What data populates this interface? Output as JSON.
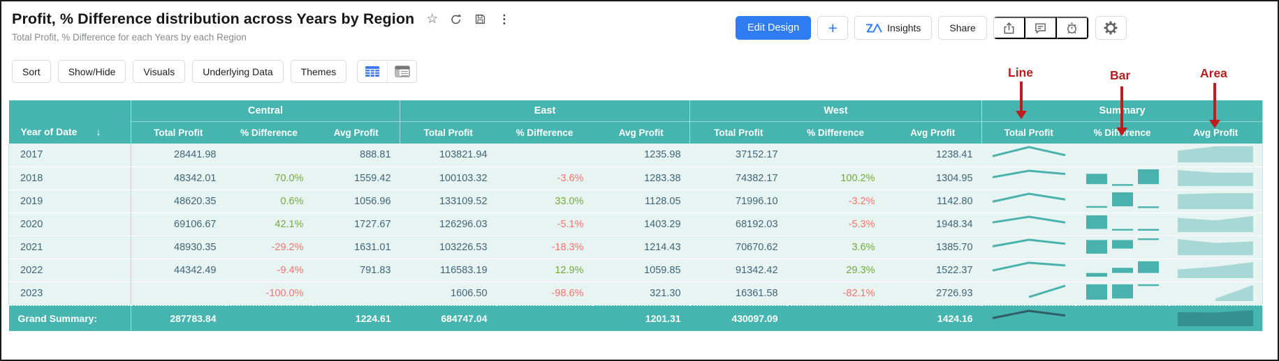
{
  "header": {
    "title": "Profit, % Difference distribution across Years by Region",
    "subtitle": "Total Profit, % Difference for each Years by each Region",
    "title_icons": [
      "star-icon",
      "refresh-icon",
      "save-icon",
      "more-vertical-icon"
    ],
    "actions": {
      "edit_design_label": "Edit Design",
      "add_label": "+",
      "insights_label": "Insights",
      "share_label": "Share",
      "action_icons": [
        "export-icon",
        "comment-icon",
        "alert-icon",
        "gear-icon"
      ]
    }
  },
  "toolbar": {
    "buttons": [
      "Sort",
      "Show/Hide",
      "Visuals",
      "Underlying Data",
      "Themes"
    ],
    "view_icons": [
      "table-view-icon",
      "pivot-view-icon"
    ]
  },
  "annotations": [
    {
      "label": "Line",
      "target": "Summary Total Profit"
    },
    {
      "label": "Bar",
      "target": "Summary % Difference"
    },
    {
      "label": "Area",
      "target": "Summary Avg Profit"
    }
  ],
  "colors": {
    "accent_teal": "#46b4af",
    "row_bg": "#e8f4f2",
    "positive": "#74a93d",
    "negative": "#f4736d",
    "primary_blue": "#2f7cf1",
    "annotation_red": "#b21f1f",
    "spark_teal": "#49b2ad",
    "spark_area_fill": "#a7d8d5"
  },
  "table": {
    "row_dim_label": "Year of Date",
    "sort_icon": "↓",
    "groups": [
      {
        "label": "Central"
      },
      {
        "label": "East"
      },
      {
        "label": "West"
      },
      {
        "label": "Summary"
      }
    ],
    "metrics": [
      "Total Profit",
      "% Difference",
      "Avg Profit"
    ],
    "rows": [
      {
        "year": "2017",
        "cells": {
          "central": [
            "28441.98",
            "",
            "888.81"
          ],
          "east": [
            "103821.94",
            "",
            "1235.98"
          ],
          "west": [
            "37152.17",
            "",
            "1238.41"
          ]
        }
      },
      {
        "year": "2018",
        "cells": {
          "central": [
            "48342.01",
            "70.0%",
            "1559.42"
          ],
          "east": [
            "100103.32",
            "-3.6%",
            "1283.38"
          ],
          "west": [
            "74382.17",
            "100.2%",
            "1304.95"
          ]
        }
      },
      {
        "year": "2019",
        "cells": {
          "central": [
            "48620.35",
            "0.6%",
            "1056.96"
          ],
          "east": [
            "133109.52",
            "33.0%",
            "1128.05"
          ],
          "west": [
            "71996.10",
            "-3.2%",
            "1142.80"
          ]
        }
      },
      {
        "year": "2020",
        "cells": {
          "central": [
            "69106.67",
            "42.1%",
            "1727.67"
          ],
          "east": [
            "126296.03",
            "-5.1%",
            "1403.29"
          ],
          "west": [
            "68192.03",
            "-5.3%",
            "1948.34"
          ]
        }
      },
      {
        "year": "2021",
        "cells": {
          "central": [
            "48930.35",
            "-29.2%",
            "1631.01"
          ],
          "east": [
            "103226.53",
            "-18.3%",
            "1214.43"
          ],
          "west": [
            "70670.62",
            "3.6%",
            "1385.70"
          ]
        }
      },
      {
        "year": "2022",
        "cells": {
          "central": [
            "44342.49",
            "-9.4%",
            "791.83"
          ],
          "east": [
            "116583.19",
            "12.9%",
            "1059.85"
          ],
          "west": [
            "91342.42",
            "29.3%",
            "1522.37"
          ]
        }
      },
      {
        "year": "2023",
        "cells": {
          "central": [
            "",
            "-100.0%",
            ""
          ],
          "east": [
            "1606.50",
            "-98.6%",
            "321.30"
          ],
          "west": [
            "16361.58",
            "-82.1%",
            "2726.93"
          ]
        }
      }
    ],
    "grand": {
      "label": "Grand Summary:",
      "central": [
        "287783.84",
        "",
        "1224.61"
      ],
      "east": [
        "684747.04",
        "",
        "1201.31"
      ],
      "west": [
        "430097.09",
        "",
        "1424.16"
      ]
    }
  },
  "chart_data": {
    "type": "table",
    "summary_columns": [
      {
        "label": "Total Profit",
        "visual": "line"
      },
      {
        "label": "% Difference",
        "visual": "bar"
      },
      {
        "label": "Avg Profit",
        "visual": "area"
      }
    ],
    "series_across": [
      "Central",
      "East",
      "West"
    ]
  }
}
